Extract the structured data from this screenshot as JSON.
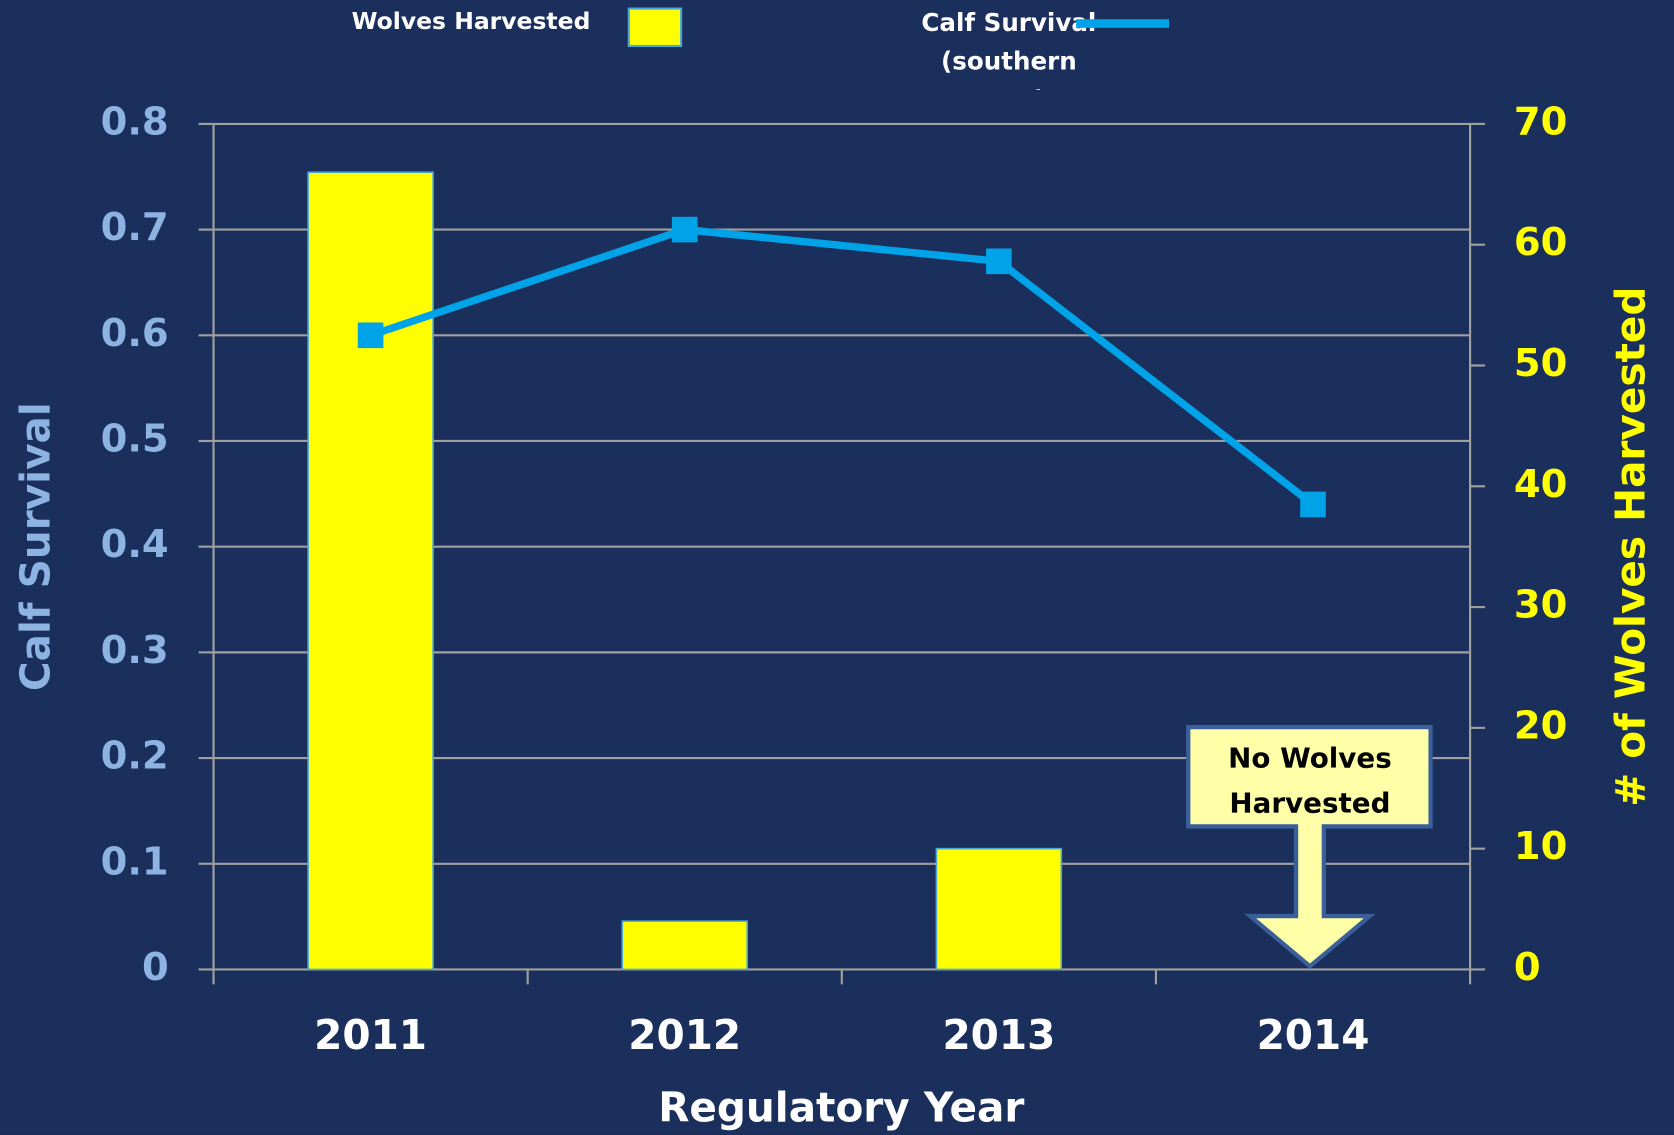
{
  "chart_data": {
    "type": "combo",
    "categories": [
      "2011",
      "2012",
      "2013",
      "2014"
    ],
    "series": [
      {
        "name": "Wolves Harvested",
        "type": "bar",
        "axis": "y2",
        "color": "#ffff00",
        "values": [
          66,
          4,
          10,
          0
        ]
      },
      {
        "name": "Calf Survival (southern area)",
        "type": "line",
        "axis": "y",
        "color": "#00a2e8",
        "values": [
          0.6,
          0.7,
          0.67,
          0.44
        ]
      }
    ],
    "ylabel": "Calf  Survival",
    "y2label": "#  of  Wolves  Harvested",
    "xlabel": "Regulatory Year",
    "ylim": [
      0,
      0.8
    ],
    "yticks": [
      0,
      0.1,
      0.2,
      0.3,
      0.4,
      0.5,
      0.6,
      0.7,
      0.8
    ],
    "y2lim": [
      0,
      70
    ],
    "y2ticks": [
      0,
      10,
      20,
      30,
      40,
      50,
      60,
      70
    ],
    "grid": true,
    "legend": "top",
    "annotation": "No Wolves Harvested"
  }
}
